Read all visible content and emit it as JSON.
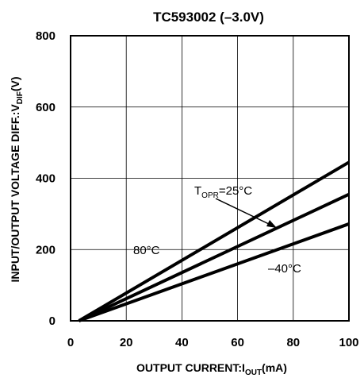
{
  "chart_data": {
    "type": "line",
    "title": "TC593002 (–3.0V)",
    "xlabel": {
      "main": "OUTPUT CURRENT:I",
      "sub": "OUT",
      "unit": "(mA)"
    },
    "ylabel": {
      "main": "INPUT/OUTPUT VOLTAGE DIFF.:V",
      "sub": "DIF",
      "unit": "(V)"
    },
    "xlim": [
      0,
      100
    ],
    "ylim": [
      0,
      800
    ],
    "xticks": [
      0,
      20,
      40,
      60,
      80,
      100
    ],
    "yticks": [
      0,
      200,
      400,
      600,
      800
    ],
    "grid": true,
    "series": [
      {
        "name": "80°C",
        "x": [
          3,
          100
        ],
        "y": [
          0,
          445
        ]
      },
      {
        "name": "25°C",
        "x": [
          3,
          100
        ],
        "y": [
          0,
          355
        ]
      },
      {
        "name": "–40°C",
        "x": [
          3,
          100
        ],
        "y": [
          0,
          272
        ]
      }
    ],
    "annotations": {
      "label_80": "80°C",
      "label_25_main": "T",
      "label_25_sub": "OPR",
      "label_25_rest": "=25°C",
      "label_neg40": "–40°C"
    }
  }
}
